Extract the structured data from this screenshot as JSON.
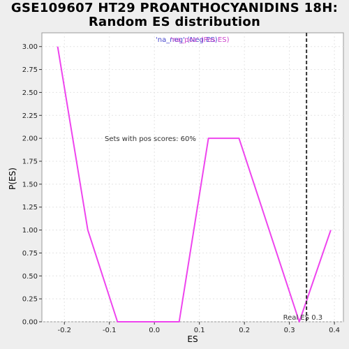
{
  "chart_data": {
    "type": "line",
    "title_line1": "GSE109607 HT29 PROANTHOCYANIDINS 18H:",
    "title_line2": "Random ES distribution",
    "xlabel": "ES",
    "ylabel": "P(ES)",
    "xlim": [
      -0.25,
      0.42
    ],
    "ylim": [
      0,
      3.15
    ],
    "x_ticks": [
      -0.2,
      -0.1,
      0.0,
      0.1,
      0.2,
      0.3,
      0.4
    ],
    "x_tick_labels": [
      "-0.2",
      "-0.1",
      "0.0",
      "0.1",
      "0.2",
      "0.3",
      "0.4"
    ],
    "y_ticks": [
      0,
      0.25,
      0.5,
      0.75,
      1.0,
      1.25,
      1.5,
      1.75,
      2.0,
      2.25,
      2.5,
      2.75,
      3.0
    ],
    "y_tick_labels": [
      "0.00",
      "0.25",
      "0.50",
      "0.75",
      "1.00",
      "1.25",
      "1.50",
      "1.75",
      "2.00",
      "2.25",
      "2.50",
      "2.75",
      "3.00"
    ],
    "grid": true,
    "series": [
      {
        "color": "#ee44ee",
        "x": [
          -0.215,
          -0.148,
          -0.082,
          0.055,
          0.12,
          0.188,
          0.322,
          0.392
        ],
        "y": [
          3.0,
          1.0,
          0.0,
          0.0,
          2.0,
          2.0,
          0.0,
          1.0
        ]
      }
    ],
    "legend": {
      "placement": "top-center",
      "neg_label": "'na_neg' (Neg ES)",
      "neg_color": "#4444cc",
      "pos_label": "'na_pos' (Pos ES)",
      "pos_color": "#cc44cc"
    },
    "annotations": {
      "pos_scores_text": "Sets with pos scores: 60%",
      "real_es_text": "Real ES 0.3",
      "real_es_value": 0.338
    }
  }
}
